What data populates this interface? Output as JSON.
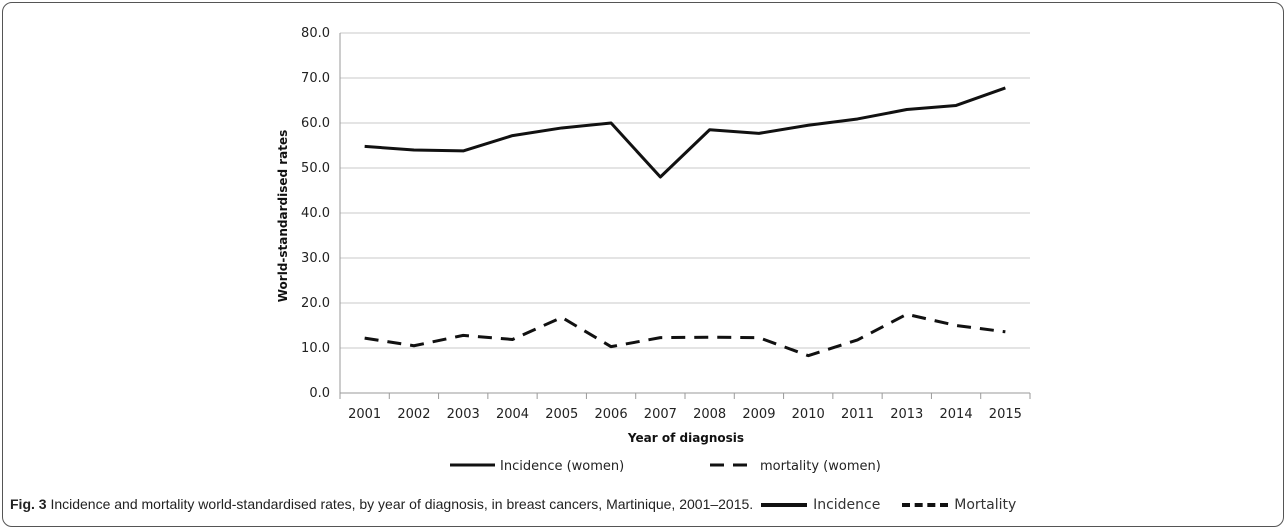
{
  "figure": {
    "label": "Fig. 3",
    "caption": "Incidence and mortality world-standardised rates, by year of diagnosis, in breast cancers, Martinique, 2001–2015.",
    "caption_legend": [
      {
        "label": "Incidence",
        "style": "solid"
      },
      {
        "label": "Mortality",
        "style": "dashed"
      }
    ]
  },
  "chart_data": {
    "type": "line",
    "categories": [
      "2001",
      "2002",
      "2003",
      "2004",
      "2005",
      "2006",
      "2007",
      "2008",
      "2009",
      "2010",
      "2011",
      "2013",
      "2014",
      "2015"
    ],
    "series": [
      {
        "name": "Incidence (women)",
        "style": "solid",
        "color": "#111111",
        "values": [
          54.8,
          54.0,
          53.8,
          57.2,
          58.9,
          60.0,
          48.0,
          58.5,
          57.7,
          59.5,
          60.9,
          63.0,
          63.9,
          67.8
        ]
      },
      {
        "name": "mortality (women)",
        "style": "dashed",
        "color": "#111111",
        "values": [
          12.2,
          10.5,
          12.8,
          11.9,
          16.8,
          10.3,
          12.3,
          12.4,
          12.3,
          8.3,
          11.8,
          17.5,
          15.0,
          13.6
        ]
      }
    ],
    "xlabel": "Year of diagnosis",
    "ylabel": "World-standardised rates",
    "ylim": [
      0,
      80
    ],
    "yticks": [
      "0.0",
      "10.0",
      "20.0",
      "30.0",
      "40.0",
      "50.0",
      "60.0",
      "70.0",
      "80.0"
    ],
    "grid": true,
    "legend_position": "bottom"
  }
}
